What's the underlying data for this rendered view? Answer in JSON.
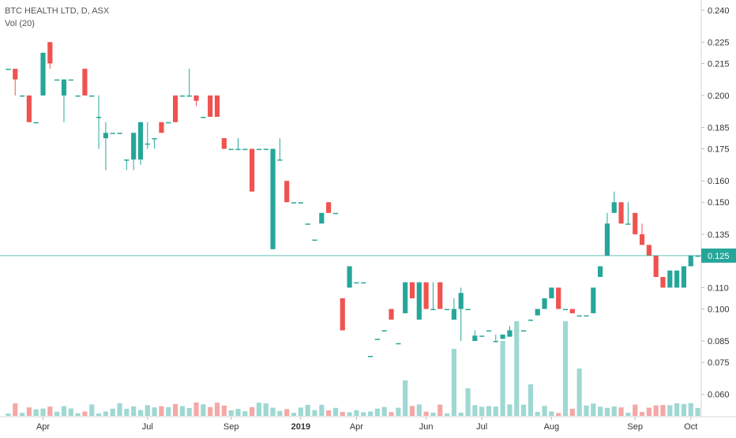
{
  "chart_data": {
    "type": "candlestick",
    "title": "BTC HEALTH LTD, D, ASX",
    "indicator": "Vol (20)",
    "ylim": [
      0.0525,
      0.2425
    ],
    "y_ticks": [
      "0.240",
      "0.225",
      "0.215",
      "0.200",
      "0.185",
      "0.175",
      "0.160",
      "0.150",
      "0.135",
      "0.125",
      "0.110",
      "0.100",
      "0.085",
      "0.075",
      "0.060"
    ],
    "x_ticks": [
      {
        "label": "Apr",
        "bar": 5
      },
      {
        "label": "Jul",
        "bar": 20
      },
      {
        "label": "Sep",
        "bar": 32
      },
      {
        "label": "2019",
        "bar": 42
      },
      {
        "label": "Apr",
        "bar": 50
      },
      {
        "label": "Jun",
        "bar": 60
      },
      {
        "label": "Jul",
        "bar": 68
      },
      {
        "label": "Aug",
        "bar": 78
      },
      {
        "label": "Sep",
        "bar": 90
      },
      {
        "label": "Oct",
        "bar": 98
      }
    ],
    "last_price": "0.125",
    "last_price_value": 0.125,
    "colors": {
      "up": "#26a69a",
      "down": "#ef5350",
      "vol_up": "#9ed8d2",
      "vol_down": "#f4a8a6",
      "price_line": "#26a69a",
      "axis_text": "#333333"
    },
    "candles": [
      {
        "o": 0.2125,
        "h": 0.2125,
        "l": 0.2125,
        "c": 0.2125
      },
      {
        "o": 0.2125,
        "h": 0.2125,
        "l": 0.2,
        "c": 0.2075
      },
      {
        "o": 0.2,
        "h": 0.2,
        "l": 0.2,
        "c": 0.2
      },
      {
        "o": 0.2,
        "h": 0.2,
        "l": 0.1875,
        "c": 0.1875
      },
      {
        "o": 0.1875,
        "h": 0.1875,
        "l": 0.1875,
        "c": 0.1875
      },
      {
        "o": 0.2,
        "h": 0.22,
        "l": 0.2,
        "c": 0.22
      },
      {
        "o": 0.225,
        "h": 0.225,
        "l": 0.2125,
        "c": 0.215
      },
      {
        "o": 0.2075,
        "h": 0.2075,
        "l": 0.2075,
        "c": 0.2075
      },
      {
        "o": 0.2,
        "h": 0.2075,
        "l": 0.1875,
        "c": 0.2075
      },
      {
        "o": 0.2075,
        "h": 0.2075,
        "l": 0.2075,
        "c": 0.2075
      },
      {
        "o": 0.2,
        "h": 0.2,
        "l": 0.2,
        "c": 0.2
      },
      {
        "o": 0.2125,
        "h": 0.2125,
        "l": 0.2,
        "c": 0.2
      },
      {
        "o": 0.2,
        "h": 0.2,
        "l": 0.2,
        "c": 0.2
      },
      {
        "o": 0.19,
        "h": 0.2,
        "l": 0.175,
        "c": 0.19
      },
      {
        "o": 0.18,
        "h": 0.1875,
        "l": 0.165,
        "c": 0.1825
      },
      {
        "o": 0.1825,
        "h": 0.1825,
        "l": 0.1825,
        "c": 0.1825
      },
      {
        "o": 0.1825,
        "h": 0.1825,
        "l": 0.1825,
        "c": 0.1825
      },
      {
        "o": 0.17,
        "h": 0.17,
        "l": 0.165,
        "c": 0.17
      },
      {
        "o": 0.17,
        "h": 0.1825,
        "l": 0.165,
        "c": 0.1825
      },
      {
        "o": 0.17,
        "h": 0.1875,
        "l": 0.1675,
        "c": 0.1875
      },
      {
        "o": 0.1775,
        "h": 0.1875,
        "l": 0.175,
        "c": 0.1775
      },
      {
        "o": 0.18,
        "h": 0.18,
        "l": 0.175,
        "c": 0.18
      },
      {
        "o": 0.1875,
        "h": 0.1875,
        "l": 0.1825,
        "c": 0.1825
      },
      {
        "o": 0.1875,
        "h": 0.1875,
        "l": 0.1875,
        "c": 0.1875
      },
      {
        "o": 0.2,
        "h": 0.2,
        "l": 0.1875,
        "c": 0.1875
      },
      {
        "o": 0.2,
        "h": 0.2,
        "l": 0.2,
        "c": 0.2
      },
      {
        "o": 0.2,
        "h": 0.2125,
        "l": 0.2,
        "c": 0.2
      },
      {
        "o": 0.2,
        "h": 0.2,
        "l": 0.195,
        "c": 0.1975
      },
      {
        "o": 0.19,
        "h": 0.19,
        "l": 0.19,
        "c": 0.19
      },
      {
        "o": 0.2,
        "h": 0.2,
        "l": 0.19,
        "c": 0.19
      },
      {
        "o": 0.2,
        "h": 0.2,
        "l": 0.19,
        "c": 0.19
      },
      {
        "o": 0.18,
        "h": 0.18,
        "l": 0.175,
        "c": 0.175
      }
    ],
    "volume_ratio_max": 1.0
  }
}
